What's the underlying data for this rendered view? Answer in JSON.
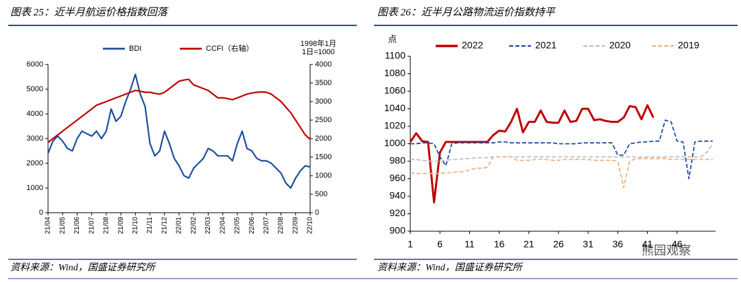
{
  "chart_data": [
    {
      "type": "line",
      "title": "图表 25：近半月航运价格指数回落",
      "source": "资料来源：Wind，国盛证券研究所",
      "annotations": [
        "1998年1月",
        "1日=1000"
      ],
      "categories": [
        "21/04",
        null,
        null,
        "21/05",
        null,
        null,
        "21/06",
        null,
        null,
        "21/07",
        null,
        null,
        "21/08",
        null,
        null,
        "21/09",
        null,
        null,
        "21/10",
        null,
        null,
        "21/11",
        null,
        null,
        "21/12",
        null,
        null,
        "22/01",
        null,
        null,
        "22/02",
        null,
        null,
        "22/03",
        null,
        null,
        "22/04",
        null,
        null,
        "22/05",
        null,
        null,
        "22/06",
        null,
        null,
        "22/07",
        null,
        null,
        "22/08",
        null,
        null,
        "22/09",
        null,
        null,
        "22/10"
      ],
      "series": [
        {
          "name": "BDI",
          "color": "#1f4e9e",
          "style": "solid",
          "values": [
            2400,
            2900,
            3100,
            2900,
            2600,
            2500,
            3000,
            3300,
            3200,
            3100,
            3300,
            3000,
            3300,
            4200,
            3700,
            3900,
            4500,
            5000,
            5600,
            4800,
            4300,
            2800,
            2300,
            2500,
            3300,
            2800,
            2200,
            1900,
            1500,
            1400,
            1800,
            2000,
            2200,
            2600,
            2500,
            2300,
            2300,
            2300,
            2100,
            2800,
            3300,
            2600,
            2500,
            2200,
            2100,
            2100,
            2000,
            1800,
            1600,
            1200,
            1000,
            1400,
            1700,
            1900,
            1850
          ]
        },
        {
          "name": "CCFI（右轴）",
          "color": "#c00000",
          "style": "solid",
          "axis": "y2",
          "values": [
            1900,
            2000,
            2100,
            2200,
            2300,
            2400,
            2500,
            2600,
            2700,
            2800,
            2900,
            2950,
            3000,
            3050,
            3100,
            3150,
            3200,
            3250,
            3300,
            3280,
            3250,
            3250,
            3220,
            3200,
            3250,
            3350,
            3450,
            3550,
            3580,
            3600,
            3450,
            3400,
            3350,
            3300,
            3200,
            3100,
            3100,
            3080,
            3050,
            3100,
            3150,
            3200,
            3230,
            3250,
            3260,
            3250,
            3200,
            3100,
            3000,
            2850,
            2700,
            2500,
            2300,
            2100,
            1980
          ]
        }
      ],
      "ylim": [
        0,
        6000
      ],
      "yticks": [
        0,
        1000,
        2000,
        3000,
        4000,
        5000,
        6000
      ],
      "y2lim": [
        0,
        4000
      ],
      "y2ticks": [
        0,
        500,
        1000,
        1500,
        2000,
        2500,
        3000,
        3500,
        4000
      ]
    },
    {
      "type": "line",
      "title": "图表 26：近半月公路物流运价指数持平",
      "source": "资料来源：Wind，国盛证券研究所",
      "ylabel": "点",
      "x": [
        1,
        2,
        3,
        4,
        5,
        6,
        7,
        8,
        9,
        10,
        11,
        12,
        13,
        14,
        15,
        16,
        17,
        18,
        19,
        20,
        21,
        22,
        23,
        24,
        25,
        26,
        27,
        28,
        29,
        30,
        31,
        32,
        33,
        34,
        35,
        36,
        37,
        38,
        39,
        40,
        41,
        42,
        43,
        44,
        45,
        46,
        47,
        48,
        49,
        50,
        51,
        52
      ],
      "series": [
        {
          "name": "2022",
          "color": "#c00000",
          "style": "solid",
          "values": [
            1002,
            1012,
            1003,
            1002,
            933,
            990,
            1002,
            1002,
            1002,
            1002,
            1002,
            1002,
            1002,
            1002,
            1010,
            1015,
            1014,
            1025,
            1040,
            1013,
            1025,
            1025,
            1038,
            1025,
            1024,
            1024,
            1038,
            1025,
            1026,
            1040,
            1040,
            1027,
            1028,
            1026,
            1025,
            1025,
            1030,
            1043,
            1042,
            1028,
            1044,
            1030,
            null,
            null,
            null,
            null,
            null,
            null,
            null,
            null,
            null,
            null
          ]
        },
        {
          "name": "2021",
          "color": "#1f4e9e",
          "style": "dashed",
          "values": [
            1000,
            1000,
            1001,
            1001,
            1000,
            985,
            975,
            1000,
            1001,
            1001,
            1001,
            1001,
            1001,
            1001,
            1001,
            1002,
            1002,
            1001,
            1001,
            1001,
            1001,
            1001,
            1001,
            1001,
            1001,
            1000,
            1000,
            1000,
            1000,
            1001,
            1001,
            1001,
            1001,
            1001,
            1001,
            987,
            987,
            1000,
            1001,
            1002,
            1002,
            1003,
            1003,
            1027,
            1025,
            1003,
            1002,
            960,
            1002,
            1003,
            1003,
            1003
          ]
        },
        {
          "name": "2020",
          "color": "#bfbfbf",
          "style": "dashed",
          "values": [
            982,
            982,
            981,
            980,
            980,
            980,
            981,
            982,
            982,
            983,
            983,
            984,
            984,
            984,
            985,
            985,
            985,
            985,
            985,
            985,
            985,
            985,
            985,
            985,
            985,
            985,
            985,
            985,
            985,
            985,
            985,
            985,
            985,
            985,
            985,
            985,
            985,
            985,
            985,
            985,
            985,
            985,
            985,
            985,
            985,
            985,
            985,
            985,
            985,
            985,
            990,
            1000
          ]
        },
        {
          "name": "2019",
          "color": "#f4b183",
          "style": "dashed",
          "values": [
            967,
            966,
            966,
            966,
            966,
            966,
            967,
            967,
            968,
            968,
            970,
            972,
            972,
            973,
            985,
            985,
            985,
            985,
            981,
            981,
            981,
            982,
            982,
            982,
            981,
            981,
            982,
            982,
            982,
            982,
            982,
            981,
            981,
            981,
            981,
            980,
            950,
            980,
            983,
            983,
            983,
            983,
            983,
            983,
            982,
            982,
            982,
            982,
            982,
            982,
            982,
            982
          ]
        }
      ],
      "xlim": [
        1,
        52.5
      ],
      "xticks": [
        1,
        6,
        11,
        16,
        21,
        26,
        31,
        36,
        41,
        46
      ],
      "ylim": [
        900,
        1100
      ],
      "yticks": [
        900,
        920,
        940,
        960,
        980,
        1000,
        1020,
        1040,
        1060,
        1080,
        1100
      ]
    }
  ],
  "watermark": "熊园观察"
}
